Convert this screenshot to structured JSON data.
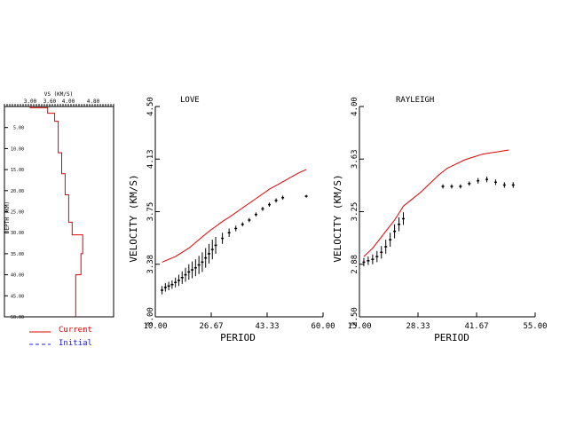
{
  "chart_data": [
    {
      "type": "line",
      "title": "",
      "xlabel": "VS (KM/S)",
      "ylabel": "DEPTH (KM)",
      "xticks": [
        "3.00",
        "3.60",
        "4.00",
        "4.80"
      ],
      "yticks": [
        "5.00",
        "10.00",
        "15.00",
        "20.00",
        "25.00",
        "30.00",
        "35.00",
        "40.00",
        "45.00",
        "50.00"
      ],
      "xlim": [
        3.0,
        4.8
      ],
      "ylim": [
        0,
        50
      ],
      "series": [
        {
          "name": "Current",
          "color": "#e00000",
          "points": [
            [
              3.0,
              0
            ],
            [
              3.0,
              0.3
            ],
            [
              3.5,
              0.3
            ],
            [
              3.5,
              1.6
            ],
            [
              3.7,
              1.6
            ],
            [
              3.7,
              3.5
            ],
            [
              3.8,
              3.5
            ],
            [
              3.8,
              11
            ],
            [
              3.9,
              11
            ],
            [
              3.9,
              16
            ],
            [
              4.0,
              16
            ],
            [
              4.0,
              21
            ],
            [
              4.1,
              21
            ],
            [
              4.1,
              27.5
            ],
            [
              4.2,
              27.5
            ],
            [
              4.2,
              30.5
            ],
            [
              4.5,
              30.5
            ],
            [
              4.5,
              35
            ],
            [
              4.45,
              35
            ],
            [
              4.45,
              40
            ],
            [
              4.3,
              40
            ],
            [
              4.3,
              50
            ]
          ]
        }
      ],
      "legend": [
        {
          "label": "Current",
          "color": "#e00000",
          "style": "solid"
        },
        {
          "label": "Initial",
          "color": "#2020e0",
          "style": "dashed"
        }
      ]
    },
    {
      "type": "scatter",
      "title": "LOVE",
      "xlabel": "PERIOD",
      "ylabel": "VELOCITY (KM/S)",
      "xticks": [
        "10.00",
        "26.67",
        "43.33",
        "60.00"
      ],
      "yticks": [
        "3.00",
        "3.38",
        "3.75",
        "4.13",
        "4.50"
      ],
      "xlim": [
        10,
        60
      ],
      "ylim": [
        3.0,
        4.5
      ],
      "model_color": "#e00000",
      "model": {
        "x": [
          12,
          14,
          16,
          18,
          20,
          22,
          24,
          26,
          28,
          30,
          32,
          35,
          38,
          41,
          44,
          47,
          50,
          53,
          55
        ],
        "y": [
          3.39,
          3.41,
          3.43,
          3.46,
          3.49,
          3.53,
          3.57,
          3.61,
          3.645,
          3.68,
          3.71,
          3.76,
          3.81,
          3.86,
          3.91,
          3.95,
          3.99,
          4.03,
          4.05
        ]
      },
      "observed": {
        "x": [
          12,
          13,
          14,
          15,
          16,
          17,
          18,
          19,
          20,
          21,
          22,
          23,
          24,
          25,
          26,
          27,
          28,
          30,
          32,
          34,
          36,
          38,
          40,
          42,
          44,
          46,
          48,
          55
        ],
        "y": [
          3.19,
          3.21,
          3.22,
          3.23,
          3.245,
          3.26,
          3.28,
          3.3,
          3.32,
          3.335,
          3.35,
          3.37,
          3.39,
          3.42,
          3.45,
          3.48,
          3.51,
          3.56,
          3.6,
          3.63,
          3.66,
          3.69,
          3.73,
          3.77,
          3.8,
          3.83,
          3.85,
          3.86
        ],
        "err": [
          0.03,
          0.03,
          0.03,
          0.03,
          0.035,
          0.04,
          0.045,
          0.05,
          0.055,
          0.06,
          0.06,
          0.065,
          0.07,
          0.07,
          0.07,
          0.07,
          0.06,
          0.04,
          0.03,
          0.02,
          0.015,
          0.015,
          0.015,
          0.015,
          0.015,
          0.015,
          0.015,
          0.01
        ]
      }
    },
    {
      "type": "scatter",
      "title": "RAYLEIGH",
      "xlabel": "PERIOD",
      "ylabel": "VELOCITY (KM/S)",
      "xticks": [
        "15.00",
        "28.33",
        "41.67",
        "55.00"
      ],
      "yticks": [
        "2.50",
        "2.88",
        "3.25",
        "3.63",
        "4.00"
      ],
      "xlim": [
        15,
        55
      ],
      "ylim": [
        2.5,
        4.0
      ],
      "model_color": "#e00000",
      "model": {
        "x": [
          16,
          17,
          18,
          19,
          20,
          21,
          22,
          23,
          24,
          25,
          27,
          29,
          31,
          33,
          35,
          37,
          39,
          41,
          43,
          45,
          47,
          49
        ],
        "y": [
          2.93,
          2.96,
          2.99,
          3.03,
          3.07,
          3.11,
          3.15,
          3.19,
          3.24,
          3.29,
          3.34,
          3.39,
          3.45,
          3.51,
          3.56,
          3.59,
          3.62,
          3.64,
          3.66,
          3.67,
          3.68,
          3.69
        ]
      },
      "observed": {
        "x": [
          16,
          17,
          18,
          19,
          20,
          21,
          22,
          23,
          24,
          25,
          34,
          36,
          38,
          40,
          42,
          44,
          46,
          48,
          50
        ],
        "y": [
          2.89,
          2.9,
          2.91,
          2.93,
          2.96,
          3.0,
          3.05,
          3.11,
          3.16,
          3.2,
          3.43,
          3.43,
          3.43,
          3.45,
          3.47,
          3.48,
          3.46,
          3.44,
          3.44
        ],
        "err": [
          0.03,
          0.03,
          0.035,
          0.04,
          0.045,
          0.05,
          0.05,
          0.05,
          0.05,
          0.045,
          0.015,
          0.015,
          0.015,
          0.015,
          0.02,
          0.02,
          0.02,
          0.02,
          0.02
        ]
      }
    }
  ]
}
